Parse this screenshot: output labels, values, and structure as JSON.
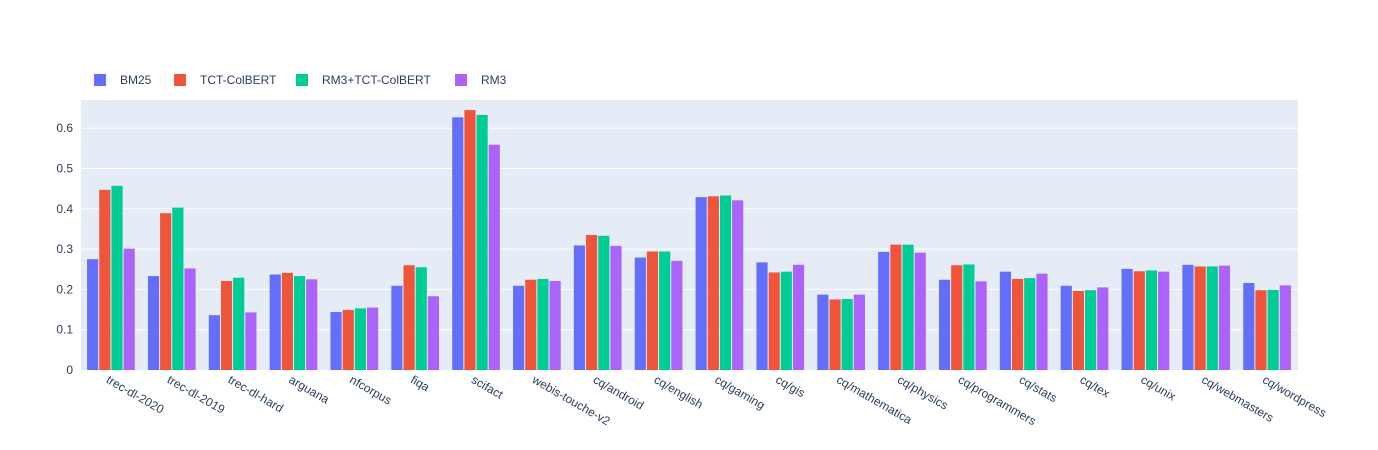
{
  "colors": {
    "plot_background": "#e5ecf6",
    "grid": "#ffffff",
    "text": "#2a3f5f",
    "series": [
      "#636efa",
      "#ef553b",
      "#00cc96",
      "#ab63fa"
    ]
  },
  "chart_data": {
    "type": "bar",
    "title": "",
    "xlabel": "",
    "ylabel": "",
    "ylim": [
      0,
      0.67
    ],
    "yticks": [
      0,
      0.1,
      0.2,
      0.3,
      0.4,
      0.5,
      0.6
    ],
    "ytick_labels": [
      "0",
      "0.1",
      "0.2",
      "0.3",
      "0.4",
      "0.5",
      "0.6"
    ],
    "grid": true,
    "legend_position": "top-left, horizontal",
    "categories": [
      "trec-dl-2020",
      "trec-dl-2019",
      "trec-dl-hard",
      "arguana",
      "nfcorpus",
      "fiqa",
      "scifact",
      "webis-touche-v2",
      "cq/android",
      "cq/english",
      "cq/gaming",
      "cq/gis",
      "cq/mathematica",
      "cq/physics",
      "cq/programmers",
      "cq/stats",
      "cq/tex",
      "cq/unix",
      "cq/webmasters",
      "cq/wordpress"
    ],
    "series": [
      {
        "name": "BM25",
        "values": [
          0.275,
          0.233,
          0.136,
          0.237,
          0.144,
          0.209,
          0.627,
          0.209,
          0.309,
          0.279,
          0.429,
          0.267,
          0.187,
          0.293,
          0.224,
          0.244,
          0.209,
          0.251,
          0.261,
          0.216
        ]
      },
      {
        "name": "TCT-ColBERT",
        "values": [
          0.447,
          0.389,
          0.221,
          0.241,
          0.149,
          0.26,
          0.645,
          0.224,
          0.335,
          0.294,
          0.431,
          0.242,
          0.175,
          0.311,
          0.26,
          0.226,
          0.196,
          0.245,
          0.257,
          0.198
        ]
      },
      {
        "name": "RM3+TCT-ColBERT",
        "values": [
          0.457,
          0.403,
          0.229,
          0.233,
          0.153,
          0.255,
          0.633,
          0.226,
          0.333,
          0.294,
          0.433,
          0.244,
          0.176,
          0.311,
          0.262,
          0.228,
          0.198,
          0.247,
          0.257,
          0.199
        ]
      },
      {
        "name": "RM3",
        "values": [
          0.301,
          0.252,
          0.143,
          0.225,
          0.155,
          0.183,
          0.559,
          0.221,
          0.308,
          0.271,
          0.421,
          0.261,
          0.187,
          0.291,
          0.22,
          0.239,
          0.205,
          0.244,
          0.259,
          0.21
        ]
      }
    ]
  }
}
